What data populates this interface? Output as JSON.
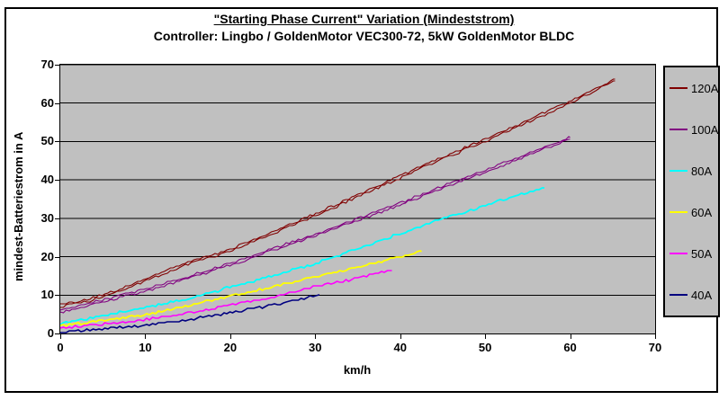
{
  "title": {
    "line1": "\"Starting Phase Current\" Variation (Mindeststrom)",
    "line2": "Controller: Lingbo / GoldenMotor VEC300-72, 5kW GoldenMotor BLDC"
  },
  "chart_data": {
    "type": "line",
    "title": "\"Starting Phase Current\" Variation (Mindeststrom)",
    "subtitle": "Controller: Lingbo / GoldenMotor VEC300-72, 5kW GoldenMotor BLDC",
    "xlabel": "km/h",
    "ylabel": "mindest-Batteriestrom in A",
    "xlim": [
      0,
      70
    ],
    "ylim": [
      0,
      70
    ],
    "x_ticks": [
      0,
      10,
      20,
      30,
      40,
      50,
      60,
      70
    ],
    "y_ticks": [
      0,
      10,
      20,
      30,
      40,
      50,
      60,
      70
    ],
    "grid": "horizontal",
    "gridline_color": "#000000",
    "plot_background": "#C0C0C0",
    "legend_position": "right",
    "legend_background": "#C0C0C0",
    "series": [
      {
        "name": "120A",
        "color": "#800000",
        "width": 1.1,
        "doubled": true,
        "points": [
          [
            0,
            7
          ],
          [
            3,
            8.2
          ],
          [
            6,
            10.2
          ],
          [
            10,
            13.7
          ],
          [
            15,
            18
          ],
          [
            20,
            21.4
          ],
          [
            25,
            26
          ],
          [
            30,
            30.6
          ],
          [
            35,
            35.6
          ],
          [
            40,
            40.5
          ],
          [
            45,
            45.5
          ],
          [
            50,
            50
          ],
          [
            55,
            55
          ],
          [
            60,
            60
          ],
          [
            63,
            63.4
          ],
          [
            65.3,
            65.8
          ]
        ]
      },
      {
        "name": "100A",
        "color": "#800080",
        "width": 1.1,
        "doubled": true,
        "points": [
          [
            0,
            5.4
          ],
          [
            5,
            8.2
          ],
          [
            10,
            11
          ],
          [
            15,
            14.3
          ],
          [
            20,
            17.8
          ],
          [
            25,
            21.6
          ],
          [
            30,
            25.4
          ],
          [
            35,
            29.4
          ],
          [
            40,
            33.5
          ],
          [
            45,
            37.8
          ],
          [
            50,
            42
          ],
          [
            55,
            46.3
          ],
          [
            60,
            50.6
          ]
        ]
      },
      {
        "name": "80A",
        "color": "#00FFFF",
        "width": 1.8,
        "doubled": false,
        "points": [
          [
            0,
            2.5
          ],
          [
            5,
            4.6
          ],
          [
            10,
            6.8
          ],
          [
            15,
            9
          ],
          [
            20,
            12
          ],
          [
            25,
            15
          ],
          [
            30,
            18.3
          ],
          [
            35,
            22
          ],
          [
            40,
            26
          ],
          [
            45,
            29.8
          ],
          [
            50,
            33.3
          ],
          [
            55,
            36.7
          ],
          [
            57,
            38
          ]
        ]
      },
      {
        "name": "60A",
        "color": "#FFFF00",
        "width": 1.8,
        "doubled": false,
        "points": [
          [
            0,
            2
          ],
          [
            5,
            3.4
          ],
          [
            10,
            4.9
          ],
          [
            15,
            7.2
          ],
          [
            20,
            9.7
          ],
          [
            25,
            12.2
          ],
          [
            30,
            14.7
          ],
          [
            35,
            17.3
          ],
          [
            40,
            19.9
          ],
          [
            42.5,
            21.2
          ]
        ]
      },
      {
        "name": "50A",
        "color": "#FF00FF",
        "width": 1.6,
        "doubled": false,
        "points": [
          [
            0,
            1.4
          ],
          [
            5,
            2.4
          ],
          [
            10,
            3.6
          ],
          [
            15,
            5.4
          ],
          [
            20,
            7.3
          ],
          [
            25,
            9.5
          ],
          [
            30,
            12.2
          ],
          [
            35,
            14.4
          ],
          [
            39,
            16.4
          ]
        ]
      },
      {
        "name": "40A",
        "color": "#000080",
        "width": 1.6,
        "doubled": false,
        "points": [
          [
            0,
            0.4
          ],
          [
            5,
            1.2
          ],
          [
            10,
            2.1
          ],
          [
            15,
            3.6
          ],
          [
            20,
            5.4
          ],
          [
            25,
            7.4
          ],
          [
            30.5,
            10
          ]
        ]
      }
    ]
  }
}
